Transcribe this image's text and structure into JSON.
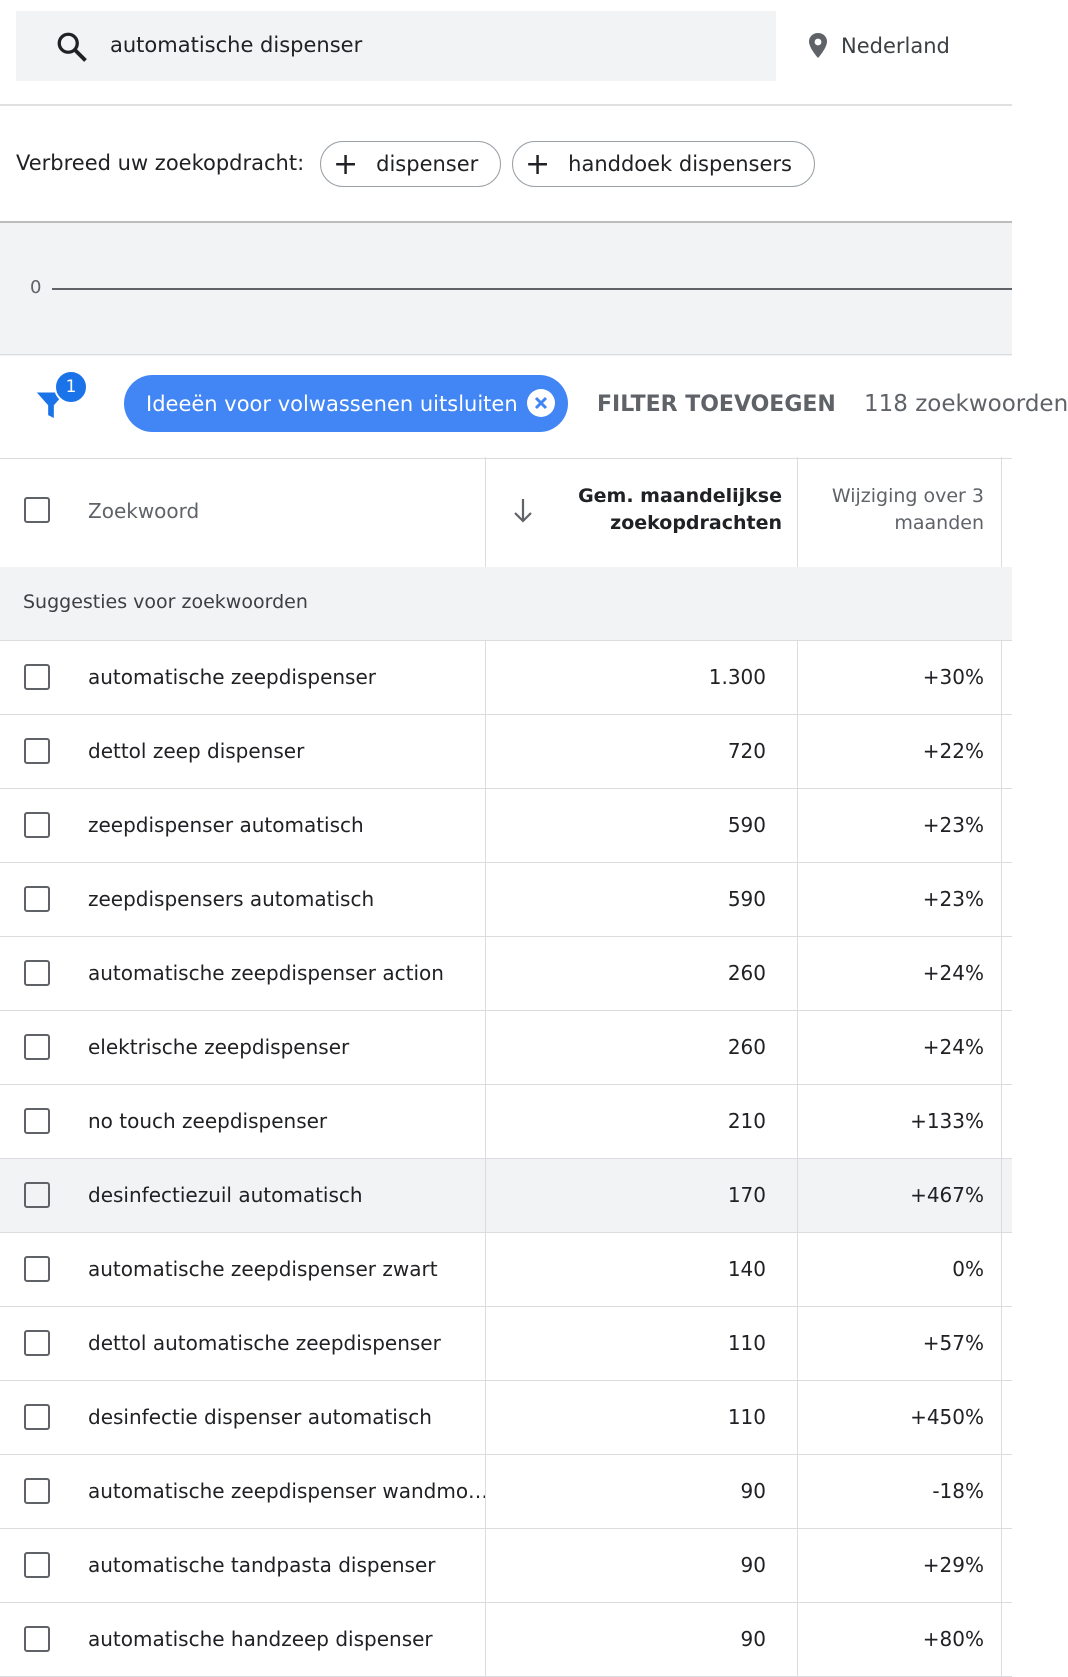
{
  "search": {
    "query": "automatische dispenser",
    "location": "Nederland"
  },
  "broaden": {
    "label": "Verbreed uw zoekopdracht:",
    "chips": [
      "dispenser",
      "handdoek dispensers"
    ]
  },
  "chart": {
    "axis_label": "0"
  },
  "filters": {
    "badge": "1",
    "active_filter": "Ideeën voor volwassenen uitsluiten",
    "add_filter": "FILTER TOEVOEGEN",
    "count": "118 zoekwoorden"
  },
  "table": {
    "headers": [
      "Zoekwoord",
      "Gem. maandelijkse zoekopdrachten",
      "Wijziging over 3 maanden"
    ],
    "group": "Suggesties voor zoekwoorden",
    "rows": [
      [
        "automatische zeepdispenser",
        "1.300",
        "+30%"
      ],
      [
        "dettol zeep dispenser",
        "720",
        "+22%"
      ],
      [
        "zeepdispenser automatisch",
        "590",
        "+23%"
      ],
      [
        "zeepdispensers automatisch",
        "590",
        "+23%"
      ],
      [
        "automatische zeepdispenser action",
        "260",
        "+24%"
      ],
      [
        "elektrische zeepdispenser",
        "260",
        "+24%"
      ],
      [
        "no touch zeepdispenser",
        "210",
        "+133%"
      ],
      [
        "desinfectiezuil automatisch",
        "170",
        "+467%"
      ],
      [
        "automatische zeepdispenser zwart",
        "140",
        "0%"
      ],
      [
        "dettol automatische zeepdispenser",
        "110",
        "+57%"
      ],
      [
        "desinfectie dispenser automatisch",
        "110",
        "+450%"
      ],
      [
        "automatische zeepdispenser wandmo…",
        "90",
        "-18%"
      ],
      [
        "automatische tandpasta dispenser",
        "90",
        "+29%"
      ],
      [
        "automatische handzeep dispenser",
        "90",
        "+80%"
      ]
    ]
  }
}
